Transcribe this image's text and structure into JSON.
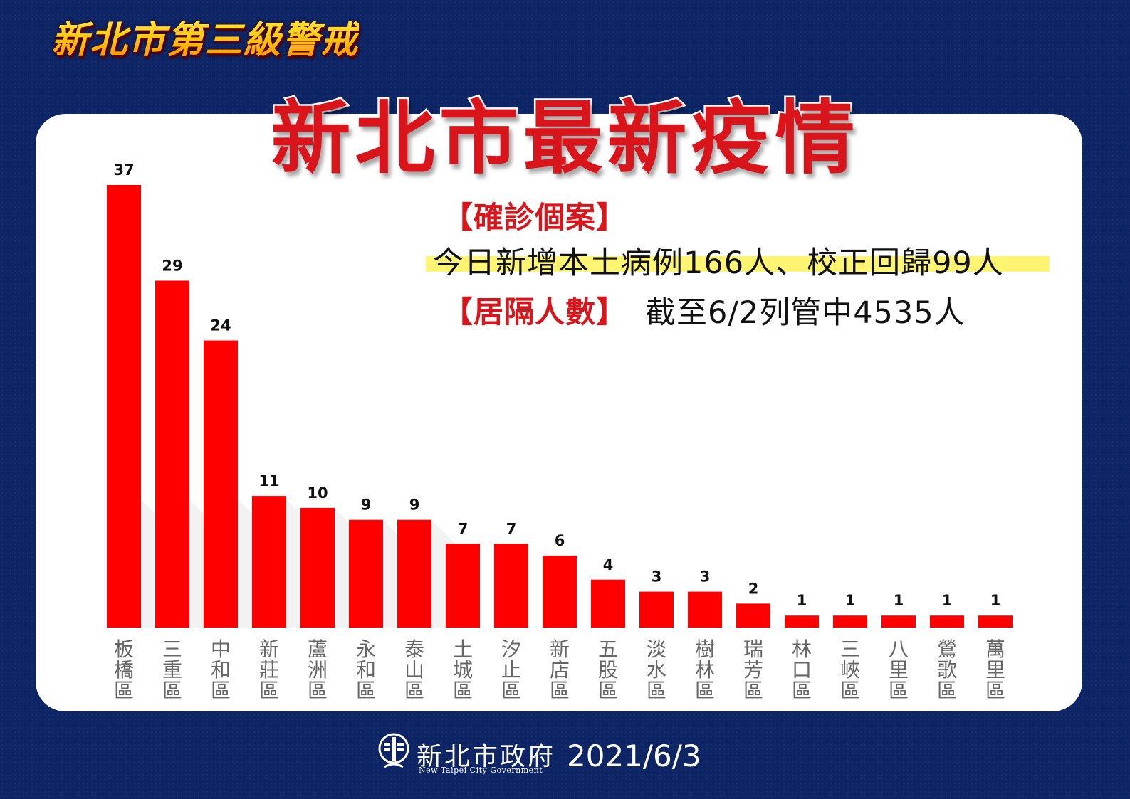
{
  "header": {
    "top_title": "新北市第三級警戒",
    "main_title": "新北市最新疫情"
  },
  "info": {
    "confirmed_label": "【確診個案】",
    "confirmed_text": "今日新增本土病例166人、校正回歸99人",
    "quarantine_label": "【居隔人數】",
    "quarantine_text": "截至6/2列管中4535人"
  },
  "footer": {
    "org_name": "新北市政府",
    "org_name_en": "New Taipei City Government",
    "date": "2021/6/3"
  },
  "colors": {
    "background": "#0d2465",
    "bar": "#ff0000",
    "title_red": "#d9141b",
    "highlight": "#fff35a"
  },
  "icons": [
    "new-taipei-city-logo-icon"
  ],
  "chart_data": {
    "type": "bar",
    "title": "",
    "xlabel": "",
    "ylabel": "",
    "ylim": [
      0,
      37
    ],
    "grid": false,
    "legend": "none",
    "categories": [
      "板橋區",
      "三重區",
      "中和區",
      "新莊區",
      "蘆洲區",
      "永和區",
      "泰山區",
      "土城區",
      "汐止區",
      "新店區",
      "五股區",
      "淡水區",
      "樹林區",
      "瑞芳區",
      "林口區",
      "三峽區",
      "八里區",
      "鶯歌區",
      "萬里區"
    ],
    "values": [
      37,
      29,
      24,
      11,
      10,
      9,
      9,
      7,
      7,
      6,
      4,
      3,
      3,
      2,
      1,
      1,
      1,
      1,
      1
    ]
  }
}
